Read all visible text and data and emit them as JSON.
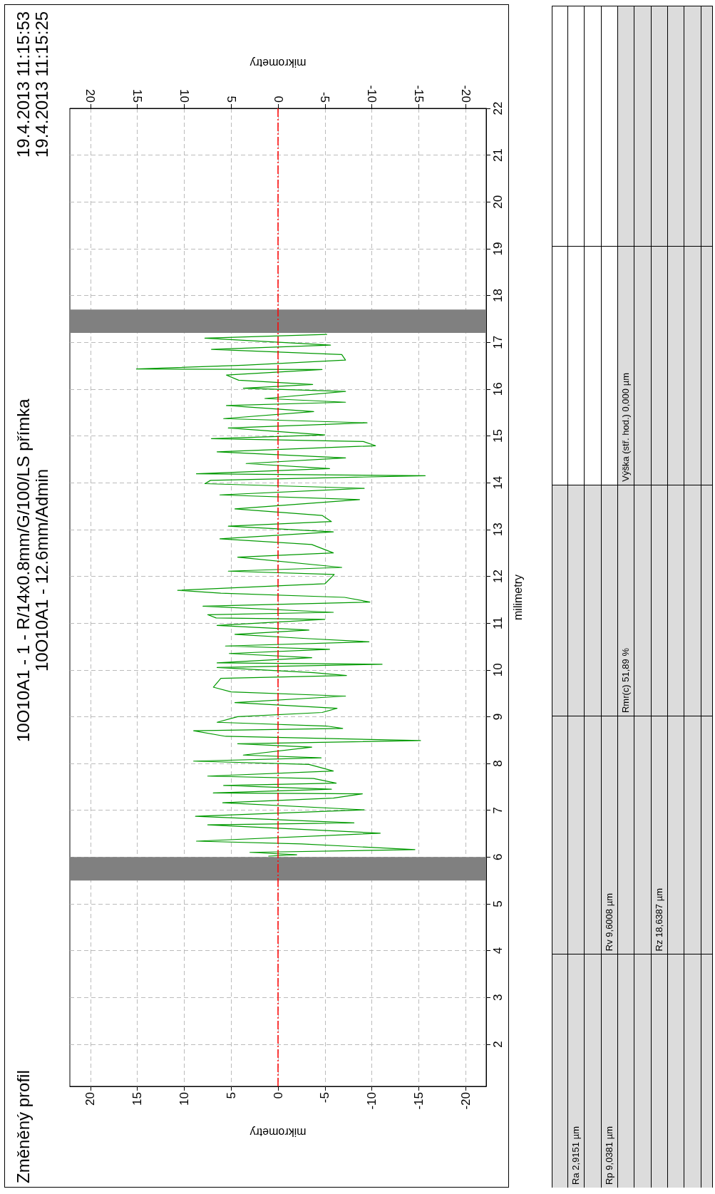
{
  "chart_data": {
    "type": "line",
    "title": "Změněný profil",
    "subtitle": "10O10A1 - 1 - R/14x0.8mm/G/100/LS přímka\n10O10A1 - 12.6mm/Admin",
    "xlabel": "mikrometry",
    "x2label": "mikrometry",
    "ylabel": "milimetry",
    "annotations": [
      "19.4.2013 11:15:53",
      "19.4.2013 11:15:25",
      "Ra 2,9151 µm",
      "Rp 9,0381 µm",
      "Rv 9,6008 µm",
      "Rz 18,6387 µm",
      "Rmr(c) 51,89 %",
      "Výška (stř. hod.) 0,000 µm"
    ],
    "xlim": [
      22.2,
      -22.2
    ],
    "xticks": [
      20,
      15,
      10,
      5,
      0,
      -5,
      -10,
      -15,
      -20
    ],
    "x2lim": [
      22.2,
      -22.2
    ],
    "x2ticks": [
      20,
      15,
      10,
      5,
      0,
      -5,
      -10,
      -15,
      -20
    ],
    "ylim": [
      1.1,
      22
    ],
    "yticks": [
      2,
      3,
      4,
      5,
      6,
      7,
      8,
      9,
      10,
      11,
      12,
      13,
      14,
      15,
      16,
      17,
      18,
      19,
      20,
      21,
      22
    ],
    "grid": true,
    "marker": "none",
    "line_style": "solid",
    "ref_lines": [
      {
        "axis": "x",
        "value": 0,
        "color": "#ff0000",
        "line_style": "dashed"
      }
    ],
    "bands": [
      {
        "axis": "y",
        "from": 5.5,
        "to": 6.0,
        "color": "#808080"
      },
      {
        "axis": "y",
        "from": 17.2,
        "to": 17.7,
        "color": "#808080"
      }
    ],
    "series": [
      {
        "color": "#009900",
        "values": [
          6.02,
          6.05,
          6.1,
          6.16,
          6.28,
          6.34,
          6.51,
          6.69,
          6.73,
          6.87,
          7.01,
          7.16,
          7.26,
          7.35,
          7.37,
          7.45,
          7.53,
          7.58,
          7.68,
          7.73,
          7.84,
          7.98,
          8.05,
          8.12,
          8.18,
          8.35,
          8.42,
          8.49,
          8.58,
          8.7,
          8.75,
          8.8,
          8.88,
          9.0,
          9.09,
          9.18,
          9.3,
          9.44,
          9.53,
          9.63,
          9.82,
          9.88,
          9.94,
          10.05,
          10.12,
          10.15,
          10.26,
          10.35,
          10.44,
          10.51,
          10.6,
          10.67,
          10.76,
          10.85,
          10.95,
          11.08,
          11.11,
          11.18,
          11.23,
          11.36,
          11.45,
          11.55,
          11.64,
          11.7,
          11.84,
          12.04,
          12.11,
          12.19,
          12.41,
          12.5,
          12.68,
          12.8,
          12.95,
          13.07,
          13.17,
          13.3,
          13.44,
          13.64,
          13.74,
          13.88,
          13.98,
          14.05,
          14.15,
          14.19,
          14.3,
          14.41,
          14.53,
          14.66,
          14.79,
          14.88,
          14.94,
          15.02,
          15.17,
          15.28,
          15.37,
          15.52,
          15.65,
          15.72,
          15.8,
          15.95,
          16.02,
          16.1,
          16.19,
          16.3,
          16.42,
          16.43,
          16.51,
          16.62,
          16.74,
          16.85,
          16.94,
          17.09,
          17.17
        ],
        "x": [
          1.0,
          -2.0,
          3.0,
          -14.6,
          -2.5,
          8.7,
          -10.9,
          7.5,
          -8.1,
          8.8,
          -9.2,
          5.9,
          -5.9,
          -9.0,
          6.9,
          -5.7,
          5.8,
          -6.2,
          -3.8,
          7.5,
          -5.9,
          -3.3,
          9.0,
          -4.6,
          3.7,
          -3.6,
          4.3,
          -15.2,
          5.6,
          9.0,
          -6.9,
          -5.2,
          6.5,
          4.3,
          -4.7,
          -6.3,
          4.6,
          -7.2,
          5.0,
          6.9,
          6.1,
          -7.3,
          -3.8,
          6.5,
          -11.1,
          6.5,
          -3.6,
          5.2,
          -5.5,
          5.6,
          -9.7,
          -3.0,
          4.6,
          -3.3,
          6.5,
          -5.0,
          6.6,
          7.5,
          -5.9,
          8.0,
          -9.8,
          -7.1,
          6.1,
          10.7,
          -5.0,
          -6.0,
          5.3,
          -6.8,
          4.3,
          -5.9,
          -3.6,
          6.2,
          -5.9,
          5.3,
          -5.7,
          -4.7,
          4.6,
          -8.7,
          6.2,
          -9.2,
          7.8,
          7.2,
          -15.7,
          8.7,
          -5.5,
          3.4,
          -7.2,
          6.5,
          -10.4,
          -9.1,
          7.1,
          -5.0,
          5.3,
          -9.5,
          5.8,
          -3.8,
          5.5,
          -7.2,
          1.4,
          -7.2,
          3.7,
          -3.7,
          4.2,
          5.5,
          -4.7,
          15.1,
          3.7,
          -7.2,
          -6.8,
          7.1,
          -5.6,
          7.8,
          -5.2
        ]
      }
    ]
  }
}
